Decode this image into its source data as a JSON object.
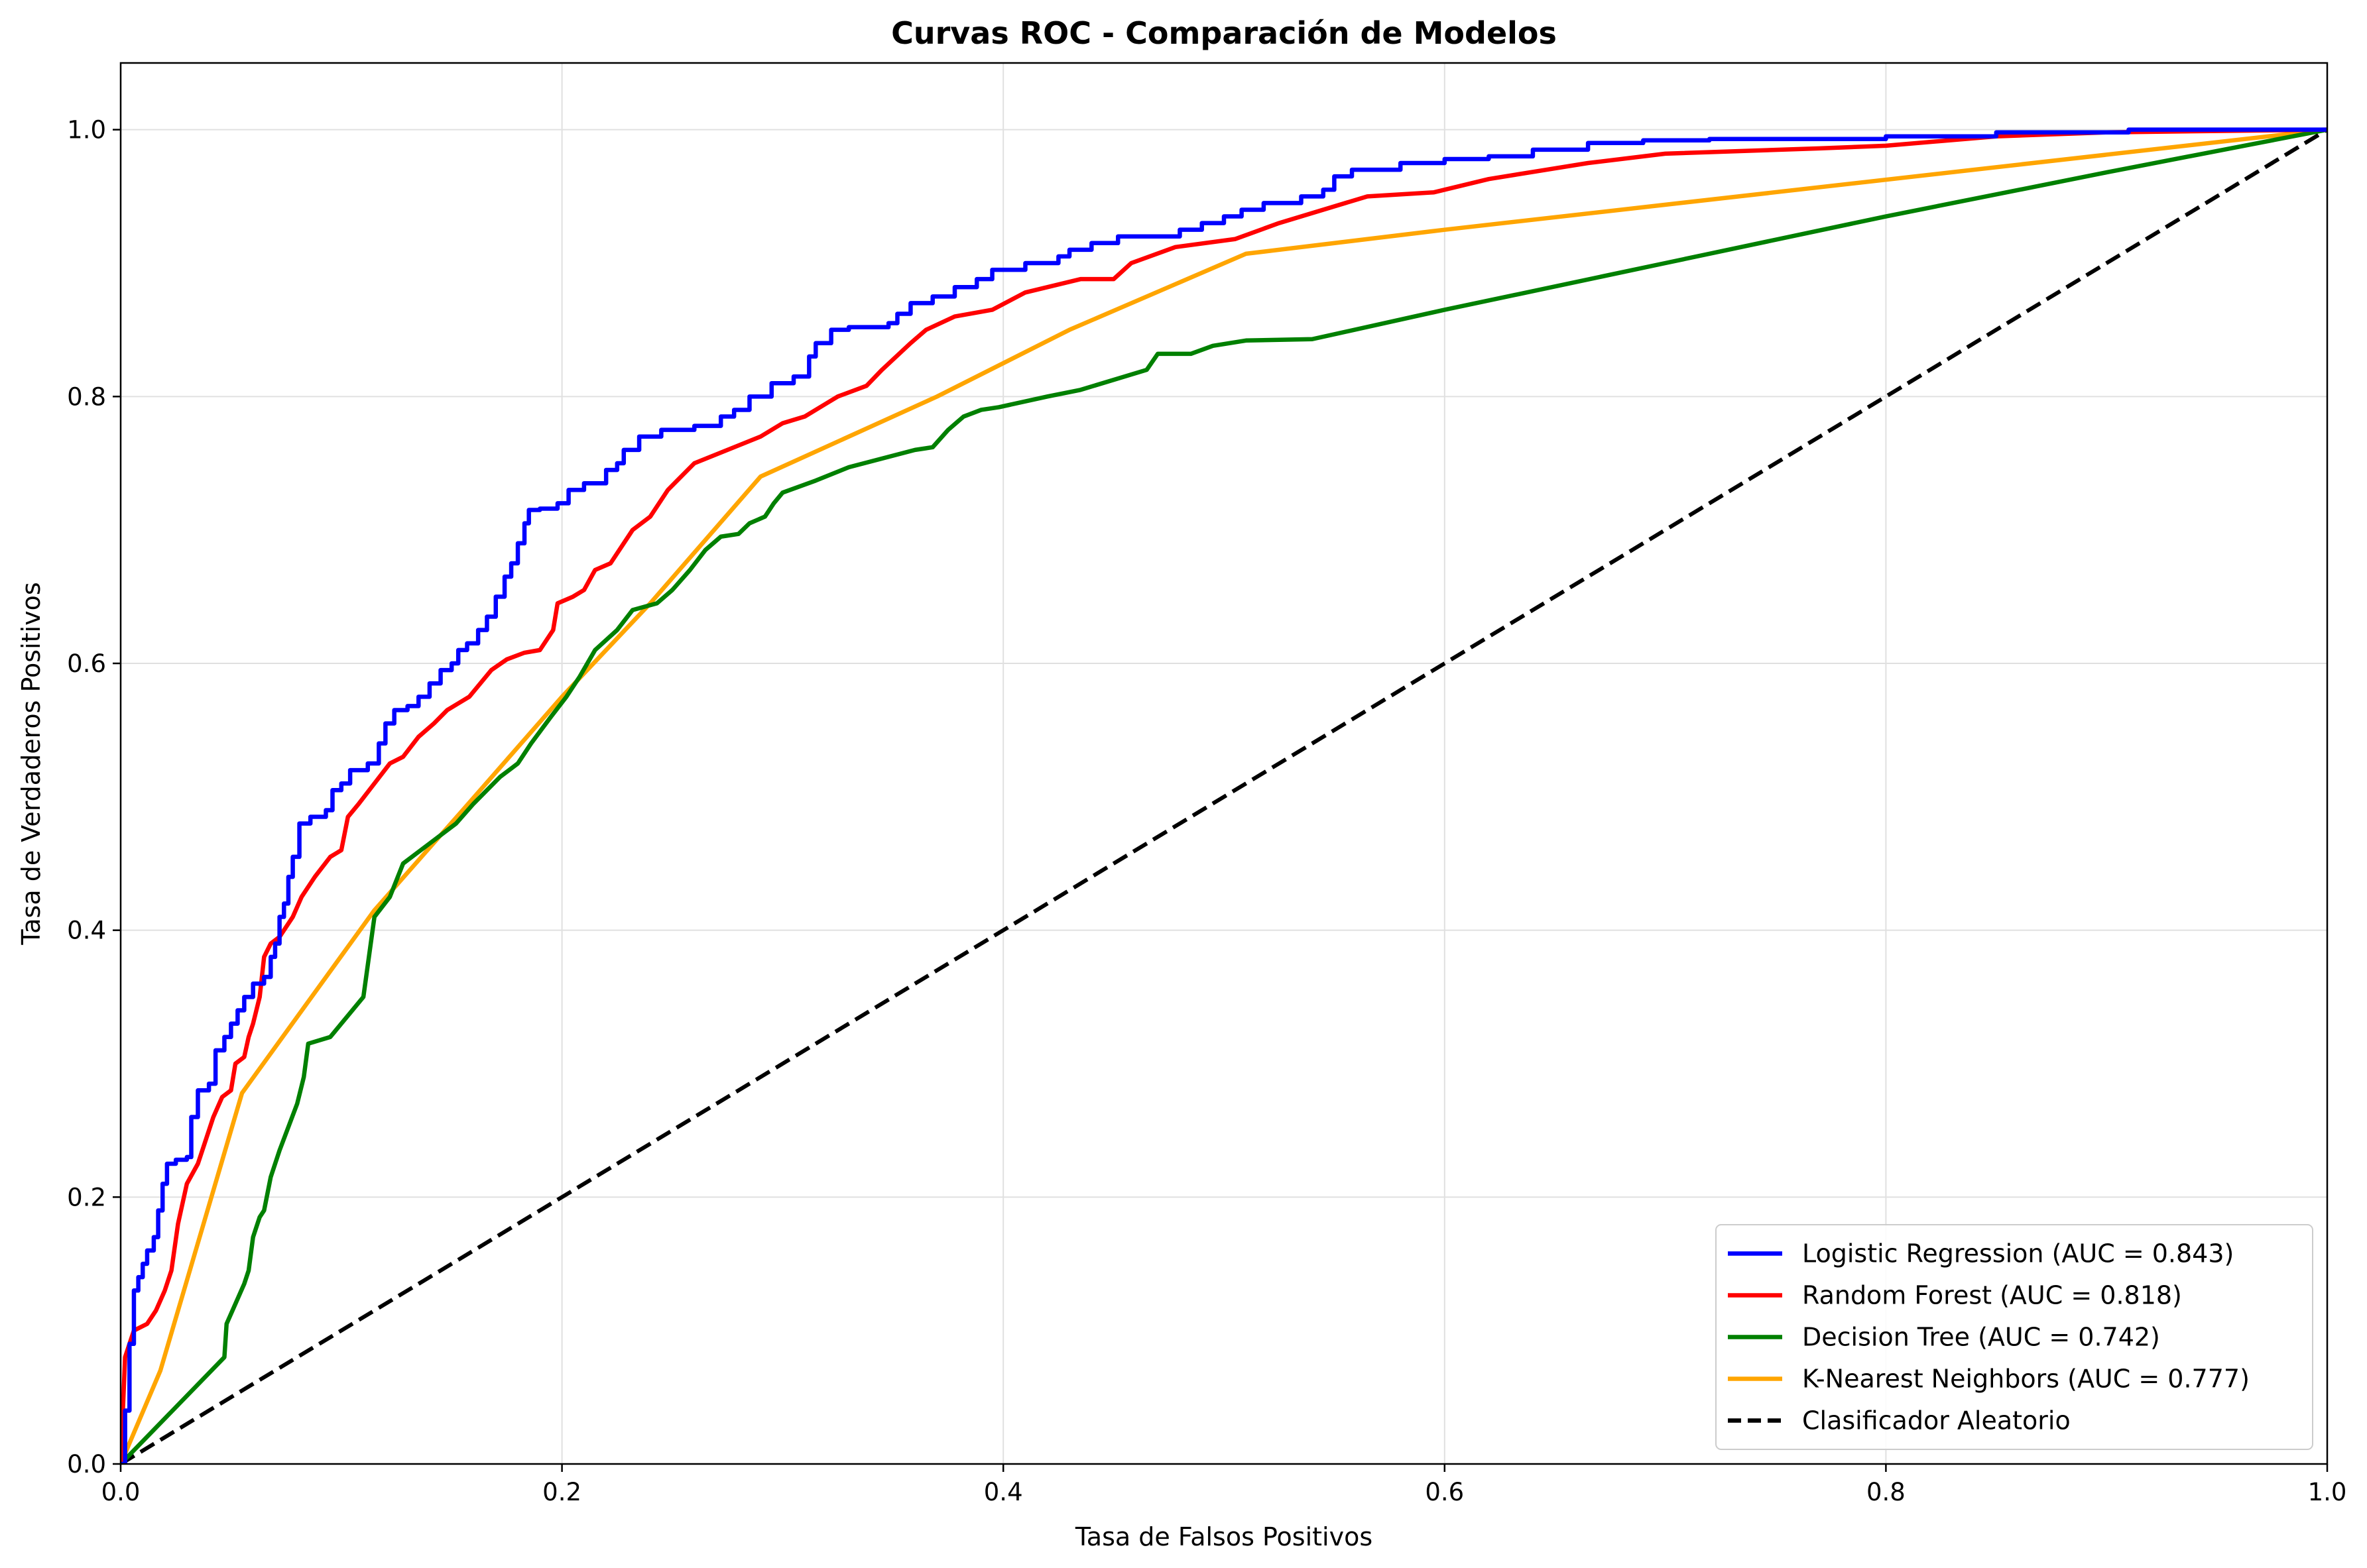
{
  "chart_data": {
    "type": "line",
    "title": "Curvas ROC - Comparación de Modelos",
    "xlabel": "Tasa de Falsos Positivos",
    "ylabel": "Tasa de Verdaderos Positivos",
    "xlim": [
      0.0,
      1.0
    ],
    "ylim": [
      0.0,
      1.05
    ],
    "x_ticks": [
      "0.0",
      "0.2",
      "0.4",
      "0.6",
      "0.8",
      "1.0"
    ],
    "y_ticks": [
      "0.0",
      "0.2",
      "0.4",
      "0.6",
      "0.8",
      "1.0"
    ],
    "grid": true,
    "legend_position": "lower right",
    "series": [
      {
        "name": "Logistic Regression (AUC = 0.843)",
        "color": "#0000ff",
        "style": "step",
        "points": [
          [
            0.0,
            0.0
          ],
          [
            0.002,
            0.04
          ],
          [
            0.004,
            0.09
          ],
          [
            0.006,
            0.13
          ],
          [
            0.008,
            0.14
          ],
          [
            0.01,
            0.15
          ],
          [
            0.012,
            0.16
          ],
          [
            0.015,
            0.17
          ],
          [
            0.017,
            0.19
          ],
          [
            0.019,
            0.21
          ],
          [
            0.021,
            0.225
          ],
          [
            0.025,
            0.228
          ],
          [
            0.03,
            0.23
          ],
          [
            0.032,
            0.26
          ],
          [
            0.035,
            0.28
          ],
          [
            0.04,
            0.285
          ],
          [
            0.043,
            0.31
          ],
          [
            0.047,
            0.32
          ],
          [
            0.05,
            0.33
          ],
          [
            0.053,
            0.34
          ],
          [
            0.056,
            0.35
          ],
          [
            0.06,
            0.36
          ],
          [
            0.065,
            0.365
          ],
          [
            0.068,
            0.38
          ],
          [
            0.07,
            0.39
          ],
          [
            0.072,
            0.41
          ],
          [
            0.074,
            0.42
          ],
          [
            0.076,
            0.44
          ],
          [
            0.078,
            0.455
          ],
          [
            0.081,
            0.48
          ],
          [
            0.086,
            0.485
          ],
          [
            0.093,
            0.49
          ],
          [
            0.096,
            0.505
          ],
          [
            0.1,
            0.51
          ],
          [
            0.104,
            0.52
          ],
          [
            0.112,
            0.525
          ],
          [
            0.117,
            0.54
          ],
          [
            0.12,
            0.555
          ],
          [
            0.124,
            0.565
          ],
          [
            0.13,
            0.568
          ],
          [
            0.135,
            0.575
          ],
          [
            0.14,
            0.585
          ],
          [
            0.145,
            0.595
          ],
          [
            0.15,
            0.6
          ],
          [
            0.153,
            0.61
          ],
          [
            0.157,
            0.615
          ],
          [
            0.162,
            0.625
          ],
          [
            0.166,
            0.635
          ],
          [
            0.17,
            0.65
          ],
          [
            0.174,
            0.665
          ],
          [
            0.177,
            0.675
          ],
          [
            0.18,
            0.69
          ],
          [
            0.183,
            0.705
          ],
          [
            0.185,
            0.715
          ],
          [
            0.19,
            0.716
          ],
          [
            0.198,
            0.72
          ],
          [
            0.203,
            0.73
          ],
          [
            0.21,
            0.735
          ],
          [
            0.22,
            0.745
          ],
          [
            0.225,
            0.75
          ],
          [
            0.228,
            0.76
          ],
          [
            0.235,
            0.77
          ],
          [
            0.245,
            0.775
          ],
          [
            0.26,
            0.778
          ],
          [
            0.272,
            0.785
          ],
          [
            0.278,
            0.79
          ],
          [
            0.285,
            0.8
          ],
          [
            0.295,
            0.81
          ],
          [
            0.305,
            0.815
          ],
          [
            0.312,
            0.83
          ],
          [
            0.315,
            0.84
          ],
          [
            0.322,
            0.85
          ],
          [
            0.33,
            0.852
          ],
          [
            0.348,
            0.855
          ],
          [
            0.352,
            0.862
          ],
          [
            0.358,
            0.87
          ],
          [
            0.368,
            0.875
          ],
          [
            0.378,
            0.882
          ],
          [
            0.388,
            0.888
          ],
          [
            0.395,
            0.895
          ],
          [
            0.41,
            0.9
          ],
          [
            0.425,
            0.905
          ],
          [
            0.43,
            0.91
          ],
          [
            0.44,
            0.915
          ],
          [
            0.452,
            0.92
          ],
          [
            0.48,
            0.925
          ],
          [
            0.49,
            0.93
          ],
          [
            0.5,
            0.935
          ],
          [
            0.508,
            0.94
          ],
          [
            0.518,
            0.945
          ],
          [
            0.535,
            0.95
          ],
          [
            0.545,
            0.955
          ],
          [
            0.55,
            0.965
          ],
          [
            0.558,
            0.97
          ],
          [
            0.58,
            0.975
          ],
          [
            0.6,
            0.978
          ],
          [
            0.62,
            0.98
          ],
          [
            0.64,
            0.985
          ],
          [
            0.665,
            0.99
          ],
          [
            0.69,
            0.992
          ],
          [
            0.72,
            0.993
          ],
          [
            0.8,
            0.995
          ],
          [
            0.85,
            0.998
          ],
          [
            0.91,
            1.0
          ],
          [
            1.0,
            1.0
          ]
        ]
      },
      {
        "name": "Random Forest (AUC = 0.818)",
        "color": "#ff0000",
        "style": "line",
        "points": [
          [
            0.0,
            0.0
          ],
          [
            0.002,
            0.08
          ],
          [
            0.006,
            0.1
          ],
          [
            0.012,
            0.105
          ],
          [
            0.016,
            0.115
          ],
          [
            0.02,
            0.13
          ],
          [
            0.023,
            0.145
          ],
          [
            0.026,
            0.18
          ],
          [
            0.03,
            0.21
          ],
          [
            0.035,
            0.225
          ],
          [
            0.038,
            0.24
          ],
          [
            0.042,
            0.26
          ],
          [
            0.046,
            0.275
          ],
          [
            0.05,
            0.28
          ],
          [
            0.052,
            0.3
          ],
          [
            0.056,
            0.305
          ],
          [
            0.058,
            0.32
          ],
          [
            0.06,
            0.33
          ],
          [
            0.063,
            0.35
          ],
          [
            0.065,
            0.38
          ],
          [
            0.068,
            0.39
          ],
          [
            0.072,
            0.395
          ],
          [
            0.078,
            0.41
          ],
          [
            0.082,
            0.425
          ],
          [
            0.088,
            0.44
          ],
          [
            0.095,
            0.455
          ],
          [
            0.1,
            0.46
          ],
          [
            0.103,
            0.485
          ],
          [
            0.108,
            0.495
          ],
          [
            0.115,
            0.51
          ],
          [
            0.122,
            0.525
          ],
          [
            0.128,
            0.53
          ],
          [
            0.135,
            0.545
          ],
          [
            0.142,
            0.555
          ],
          [
            0.148,
            0.565
          ],
          [
            0.153,
            0.57
          ],
          [
            0.158,
            0.575
          ],
          [
            0.163,
            0.585
          ],
          [
            0.168,
            0.595
          ],
          [
            0.175,
            0.603
          ],
          [
            0.183,
            0.608
          ],
          [
            0.19,
            0.61
          ],
          [
            0.196,
            0.625
          ],
          [
            0.198,
            0.645
          ],
          [
            0.205,
            0.65
          ],
          [
            0.21,
            0.655
          ],
          [
            0.215,
            0.67
          ],
          [
            0.222,
            0.675
          ],
          [
            0.228,
            0.69
          ],
          [
            0.232,
            0.7
          ],
          [
            0.24,
            0.71
          ],
          [
            0.248,
            0.73
          ],
          [
            0.26,
            0.75
          ],
          [
            0.275,
            0.76
          ],
          [
            0.29,
            0.77
          ],
          [
            0.3,
            0.78
          ],
          [
            0.31,
            0.785
          ],
          [
            0.32,
            0.795
          ],
          [
            0.325,
            0.8
          ],
          [
            0.338,
            0.808
          ],
          [
            0.345,
            0.82
          ],
          [
            0.358,
            0.84
          ],
          [
            0.365,
            0.85
          ],
          [
            0.378,
            0.86
          ],
          [
            0.395,
            0.865
          ],
          [
            0.41,
            0.878
          ],
          [
            0.435,
            0.888
          ],
          [
            0.45,
            0.888
          ],
          [
            0.458,
            0.9
          ],
          [
            0.478,
            0.912
          ],
          [
            0.505,
            0.918
          ],
          [
            0.525,
            0.93
          ],
          [
            0.565,
            0.95
          ],
          [
            0.595,
            0.953
          ],
          [
            0.62,
            0.963
          ],
          [
            0.665,
            0.975
          ],
          [
            0.7,
            0.982
          ],
          [
            0.77,
            0.986
          ],
          [
            0.8,
            0.988
          ],
          [
            0.85,
            0.995
          ],
          [
            0.9,
            0.998
          ],
          [
            1.0,
            1.0
          ]
        ]
      },
      {
        "name": "Decision Tree (AUC = 0.742)",
        "color": "#008000",
        "style": "line",
        "points": [
          [
            0.0,
            0.0
          ],
          [
            0.047,
            0.08
          ],
          [
            0.048,
            0.105
          ],
          [
            0.052,
            0.12
          ],
          [
            0.056,
            0.135
          ],
          [
            0.058,
            0.145
          ],
          [
            0.06,
            0.17
          ],
          [
            0.063,
            0.185
          ],
          [
            0.065,
            0.19
          ],
          [
            0.068,
            0.215
          ],
          [
            0.072,
            0.235
          ],
          [
            0.08,
            0.27
          ],
          [
            0.083,
            0.29
          ],
          [
            0.085,
            0.315
          ],
          [
            0.095,
            0.32
          ],
          [
            0.1,
            0.33
          ],
          [
            0.11,
            0.35
          ],
          [
            0.115,
            0.41
          ],
          [
            0.122,
            0.425
          ],
          [
            0.128,
            0.45
          ],
          [
            0.14,
            0.465
          ],
          [
            0.152,
            0.48
          ],
          [
            0.16,
            0.495
          ],
          [
            0.172,
            0.515
          ],
          [
            0.18,
            0.525
          ],
          [
            0.186,
            0.54
          ],
          [
            0.195,
            0.56
          ],
          [
            0.202,
            0.575
          ],
          [
            0.208,
            0.59
          ],
          [
            0.215,
            0.61
          ],
          [
            0.225,
            0.625
          ],
          [
            0.232,
            0.64
          ],
          [
            0.243,
            0.645
          ],
          [
            0.25,
            0.655
          ],
          [
            0.258,
            0.67
          ],
          [
            0.265,
            0.685
          ],
          [
            0.272,
            0.695
          ],
          [
            0.28,
            0.697
          ],
          [
            0.285,
            0.705
          ],
          [
            0.292,
            0.71
          ],
          [
            0.296,
            0.72
          ],
          [
            0.3,
            0.728
          ],
          [
            0.315,
            0.737
          ],
          [
            0.33,
            0.747
          ],
          [
            0.36,
            0.76
          ],
          [
            0.368,
            0.762
          ],
          [
            0.375,
            0.775
          ],
          [
            0.382,
            0.785
          ],
          [
            0.39,
            0.79
          ],
          [
            0.398,
            0.792
          ],
          [
            0.42,
            0.8
          ],
          [
            0.435,
            0.805
          ],
          [
            0.465,
            0.82
          ],
          [
            0.47,
            0.832
          ],
          [
            0.485,
            0.832
          ],
          [
            0.495,
            0.838
          ],
          [
            0.51,
            0.842
          ],
          [
            0.54,
            0.843
          ],
          [
            0.6,
            0.865
          ],
          [
            0.7,
            0.9
          ],
          [
            0.8,
            0.935
          ],
          [
            0.9,
            0.968
          ],
          [
            1.0,
            1.0
          ]
        ]
      },
      {
        "name": "K-Nearest Neighbors (AUC = 0.777)",
        "color": "#ffa500",
        "style": "line",
        "points": [
          [
            0.0,
            0.0
          ],
          [
            0.018,
            0.07
          ],
          [
            0.055,
            0.278
          ],
          [
            0.115,
            0.415
          ],
          [
            0.155,
            0.49
          ],
          [
            0.2,
            0.575
          ],
          [
            0.24,
            0.645
          ],
          [
            0.29,
            0.74
          ],
          [
            0.37,
            0.8
          ],
          [
            0.43,
            0.85
          ],
          [
            0.51,
            0.907
          ],
          [
            0.6,
            0.925
          ],
          [
            1.0,
            1.0
          ]
        ]
      },
      {
        "name": "Clasificador Aleatorio",
        "color": "#000000",
        "style": "dashed",
        "points": [
          [
            0.0,
            0.0
          ],
          [
            1.0,
            1.0
          ]
        ]
      }
    ]
  }
}
